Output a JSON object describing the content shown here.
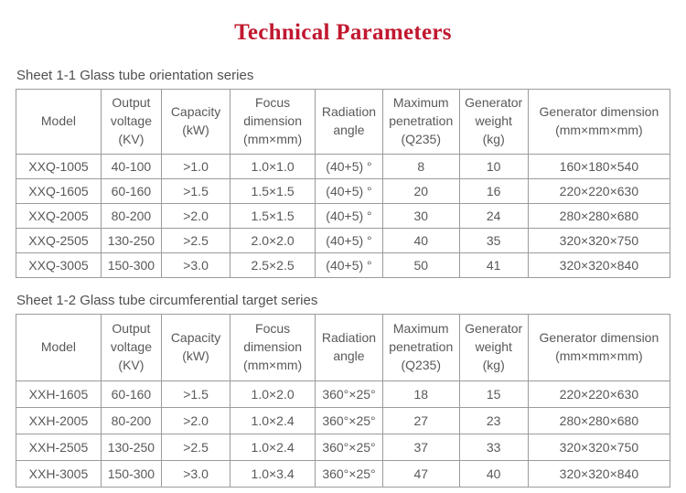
{
  "page": {
    "title": "Technical Parameters"
  },
  "colors": {
    "title_red": "#c1182f",
    "text_gray": "#58595b",
    "border_gray": "#9b9b9b"
  },
  "tables": [
    {
      "caption": "Sheet 1-1 Glass tube orientation series",
      "headers": [
        "Model",
        "Output\nvoltage\n(KV)",
        "Capacity\n(kW)",
        "Focus\ndimension\n(mm×mm)",
        "Radiation\nangle",
        "Maximum\npenetration\n(Q235)",
        "Generator\nweight\n(kg)",
        "Generator dimension\n(mm×mm×mm)"
      ],
      "rows": [
        [
          "XXQ-1005",
          "40-100",
          ">1.0",
          "1.0×1.0",
          "(40+5) °",
          "8",
          "10",
          "160×180×540"
        ],
        [
          "XXQ-1605",
          "60-160",
          ">1.5",
          "1.5×1.5",
          "(40+5) °",
          "20",
          "16",
          "220×220×630"
        ],
        [
          "XXQ-2005",
          "80-200",
          ">2.0",
          "1.5×1.5",
          "(40+5) °",
          "30",
          "24",
          "280×280×680"
        ],
        [
          "XXQ-2505",
          "130-250",
          ">2.5",
          "2.0×2.0",
          "(40+5) °",
          "40",
          "35",
          "320×320×750"
        ],
        [
          "XXQ-3005",
          "150-300",
          ">3.0",
          "2.5×2.5",
          "(40+5) °",
          "50",
          "41",
          "320×320×840"
        ]
      ]
    },
    {
      "caption": "Sheet 1-2 Glass tube circumferential target series",
      "headers": [
        "Model",
        "Output\nvoltage\n(KV)",
        "Capacity\n(kW)",
        "Focus\ndimension\n(mm×mm)",
        "Radiation\nangle",
        "Maximum\npenetration\n(Q235)",
        "Generator\nweight\n(kg)",
        "Generator dimension\n(mm×mm×mm)"
      ],
      "rows": [
        [
          "XXH-1605",
          "60-160",
          ">1.5",
          "1.0×2.0",
          "360°×25°",
          "18",
          "15",
          "220×220×630"
        ],
        [
          "XXH-2005",
          "80-200",
          ">2.0",
          "1.0×2.4",
          "360°×25°",
          "27",
          "23",
          "280×280×680"
        ],
        [
          "XXH-2505",
          "130-250",
          ">2.5",
          "1.0×2.4",
          "360°×25°",
          "37",
          "33",
          "320×320×750"
        ],
        [
          "XXH-3005",
          "150-300",
          ">3.0",
          "1.0×3.4",
          "360°×25°",
          "47",
          "40",
          "320×320×840"
        ]
      ]
    }
  ]
}
